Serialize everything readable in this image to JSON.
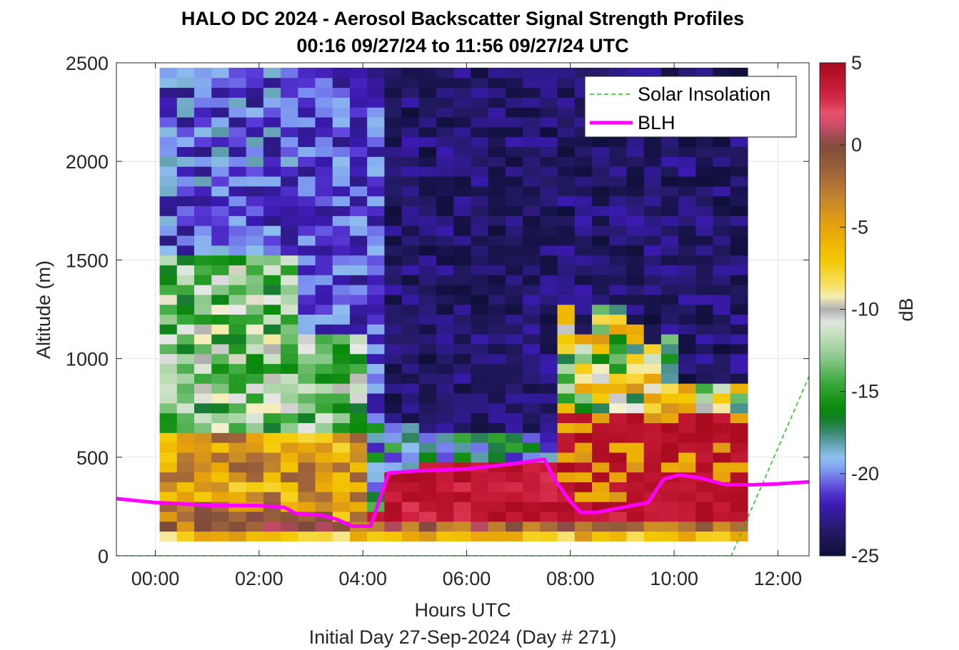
{
  "chart_data": {
    "type": "heatmap",
    "title": "HALO DC 2024 - Aerosol Backscatter Signal Strength Profiles",
    "subtitle": "00:16 09/27/24 to 11:56 09/27/24  UTC",
    "xlabel": "Hours UTC",
    "xlabel2": "Initial Day 27-Sep-2024 (Day # 271)",
    "ylabel": "Altitude (m)",
    "xlim_hours": [
      -0.75,
      12.6
    ],
    "ylim": [
      0,
      2500
    ],
    "xticks": [
      0,
      2,
      4,
      6,
      8,
      10,
      12
    ],
    "xtick_labels": [
      "00:00",
      "02:00",
      "04:00",
      "06:00",
      "08:00",
      "10:00",
      "12:00"
    ],
    "yticks": [
      0,
      500,
      1000,
      1500,
      2000,
      2500
    ],
    "ytick_labels": [
      "0",
      "500",
      "1000",
      "1500",
      "2000",
      "2500"
    ],
    "grid": true,
    "colorbar": {
      "label": "dB",
      "range": [
        -25,
        5
      ],
      "ticks": [
        5,
        0,
        -5,
        -10,
        -15,
        -20,
        -25
      ],
      "tick_labels": [
        "5",
        "0",
        "-5",
        "-10",
        "-15",
        "-20",
        "-25"
      ]
    },
    "legend": {
      "placement": "top-right",
      "entries": [
        {
          "label": "Solar Insolation",
          "style": "dashed",
          "color": "#22c11f"
        },
        {
          "label": "BLH",
          "style": "solid",
          "color": "#ff00ff"
        }
      ]
    },
    "heatmap": {
      "time_start_hours": 0.25,
      "time_step_hours": 0.3333,
      "altitude_start_m": 100,
      "altitude_step_m": 50,
      "columns": 34,
      "rows": 48,
      "description_ranges_db": [
        {
          "from_hr": 0.25,
          "to_hr": 4.2,
          "from_m": 100,
          "to_m": 650,
          "db": -6
        },
        {
          "from_hr": 4.2,
          "to_hr": 11.9,
          "from_m": 150,
          "to_m": 420,
          "db": 3.5
        },
        {
          "from_hr": 7.8,
          "to_hr": 11.2,
          "from_m": 420,
          "to_m": 720,
          "db": 3
        }
      ]
    },
    "blh_series": {
      "name": "BLH",
      "x": [
        -0.75,
        0.0,
        0.45,
        1.0,
        2.0,
        2.5,
        2.7,
        3.2,
        3.5,
        3.8,
        4.15,
        4.5,
        5.0,
        6.0,
        7.0,
        7.5,
        7.7,
        8.0,
        8.2,
        8.5,
        9.0,
        9.5,
        9.8,
        10.1,
        10.5,
        11.0,
        11.5,
        12.0,
        12.6
      ],
      "y": [
        290,
        270,
        265,
        255,
        255,
        245,
        215,
        205,
        185,
        150,
        150,
        420,
        430,
        440,
        470,
        490,
        385,
        275,
        220,
        220,
        245,
        270,
        390,
        410,
        395,
        360,
        360,
        365,
        375
      ]
    },
    "solar_insolation_series": {
      "name": "Solar Insolation",
      "x": [
        -0.75,
        11.1,
        12.6
      ],
      "y": [
        0,
        0,
        910
      ]
    }
  }
}
